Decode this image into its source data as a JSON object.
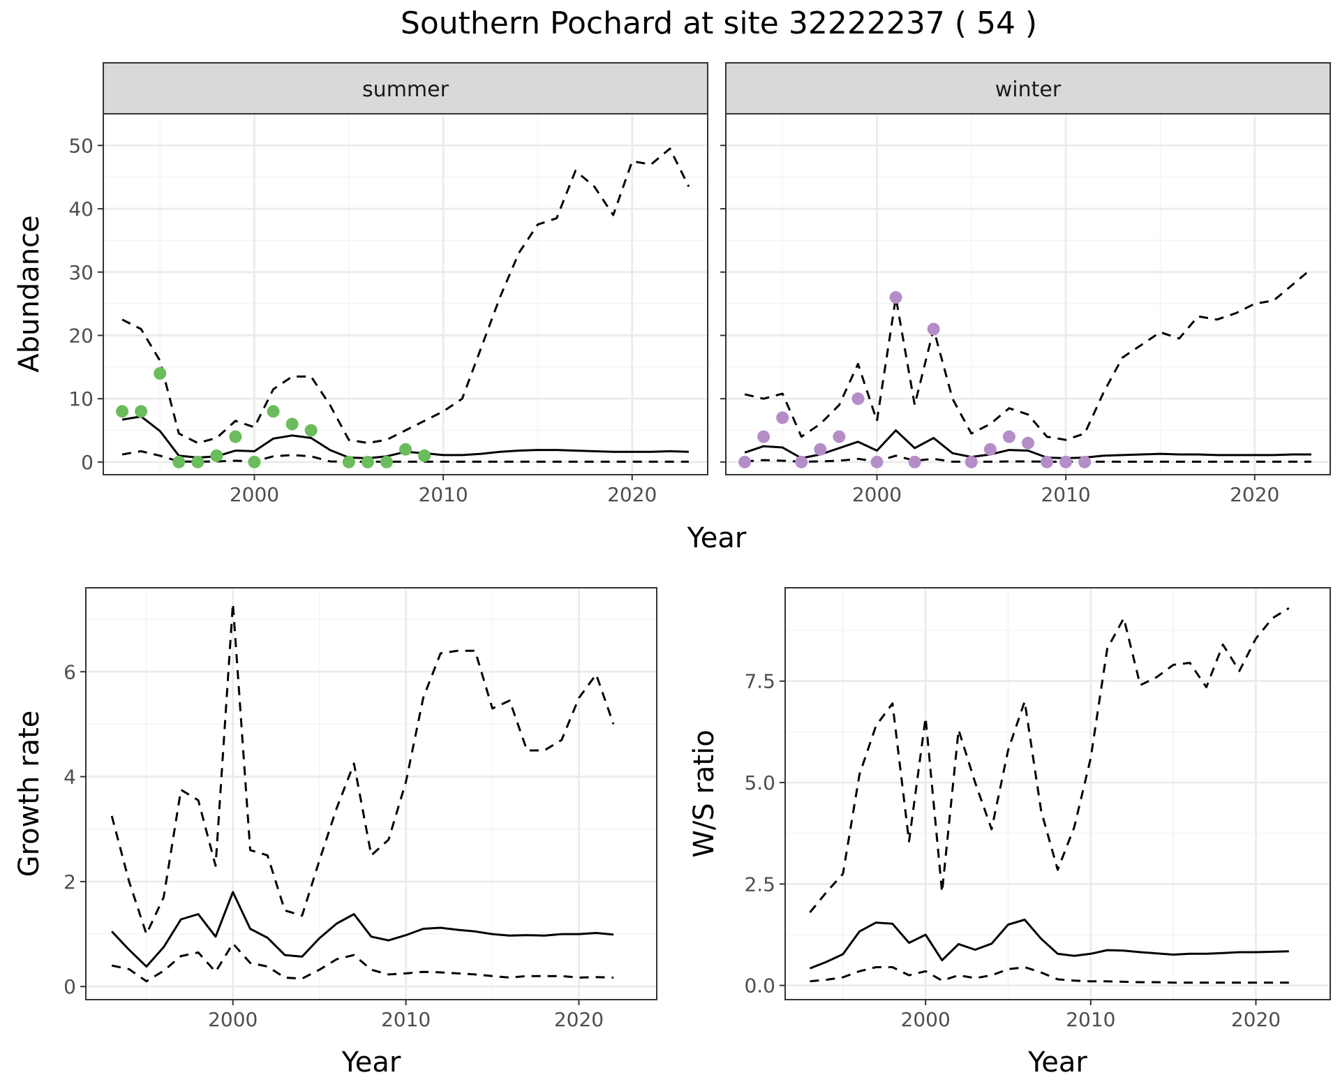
{
  "title": "Southern Pochard at site 32222237 ( 54 )",
  "colors": {
    "summer_points": "#6BBC5C",
    "winter_points": "#B48DC8",
    "line": "#000000",
    "grid_major": "#EBEBEB",
    "grid_minor": "#F3F3F3",
    "strip_fill": "#D9D9D9",
    "panel_border": "#333333"
  },
  "chart_data": [
    {
      "id": "abundance",
      "type": "line",
      "xlabel": "Year",
      "ylabel": "Abundance",
      "facets": [
        {
          "label": "summer",
          "point_color": "summer_points",
          "xlim": [
            1992,
            2024
          ],
          "ylim": [
            -2,
            55
          ],
          "x_ticks": [
            2000,
            2010,
            2020
          ],
          "y_ticks": [
            0,
            10,
            20,
            30,
            40,
            50
          ],
          "points": {
            "x": [
              1993,
              1994,
              1995,
              1996,
              1997,
              1998,
              1999,
              2000,
              2001,
              2002,
              2003,
              2005,
              2006,
              2007,
              2008,
              2009
            ],
            "y": [
              8,
              8,
              14,
              0,
              0,
              1,
              4,
              0,
              8,
              6,
              5,
              0,
              0,
              0,
              2,
              1
            ]
          },
          "series": [
            {
              "style": "solid",
              "x": [
                1993,
                1994,
                1995,
                1996,
                1997,
                1998,
                1999,
                2000,
                2001,
                2002,
                2003,
                2004,
                2005,
                2006,
                2007,
                2008,
                2009,
                2010,
                2011,
                2012,
                2013,
                2014,
                2015,
                2016,
                2017,
                2018,
                2019,
                2020,
                2021,
                2022,
                2023
              ],
              "y": [
                6.7,
                7.2,
                4.9,
                1.0,
                0.7,
                0.9,
                1.8,
                1.7,
                3.7,
                4.2,
                3.8,
                1.9,
                0.7,
                0.6,
                0.9,
                1.6,
                1.4,
                1.1,
                1.1,
                1.3,
                1.6,
                1.8,
                1.9,
                1.9,
                1.8,
                1.7,
                1.6,
                1.6,
                1.6,
                1.7,
                1.6
              ]
            },
            {
              "style": "dashed",
              "x": [
                1993,
                1994,
                1995,
                1996,
                1997,
                1998,
                1999,
                2000,
                2001,
                2002,
                2003,
                2004,
                2005,
                2006,
                2007,
                2008,
                2009,
                2010,
                2011,
                2012,
                2013,
                2014,
                2015,
                2016,
                2017,
                2018,
                2019,
                2020,
                2021,
                2022,
                2023
              ],
              "y": [
                22.5,
                21.0,
                16.0,
                4.5,
                3.0,
                3.8,
                6.5,
                5.5,
                11.5,
                13.5,
                13.5,
                9.0,
                3.5,
                3.0,
                3.5,
                5.0,
                6.5,
                8.0,
                10.0,
                18.0,
                26.0,
                33.0,
                37.5,
                38.5,
                46.0,
                43.5,
                39.0,
                47.5,
                47.0,
                49.5,
                43.5
              ]
            },
            {
              "style": "dashed",
              "x": [
                1993,
                1994,
                1995,
                1996,
                1997,
                1998,
                1999,
                2000,
                2001,
                2002,
                2003,
                2004,
                2005,
                2006,
                2007,
                2008,
                2009,
                2010,
                2011,
                2012,
                2013,
                2014,
                2015,
                2016,
                2017,
                2018,
                2019,
                2020,
                2021,
                2022,
                2023
              ],
              "y": [
                1.2,
                1.7,
                1.0,
                0.1,
                0.05,
                0.1,
                0.2,
                0.1,
                0.9,
                1.1,
                0.9,
                0.1,
                0.05,
                0.05,
                0.05,
                0.05,
                0.05,
                0.05,
                0.05,
                0.05,
                0.05,
                0.05,
                0.05,
                0.05,
                0.05,
                0.05,
                0.05,
                0.05,
                0.05,
                0.05,
                0.05
              ]
            }
          ]
        },
        {
          "label": "winter",
          "point_color": "winter_points",
          "xlim": [
            1992,
            2024
          ],
          "ylim": [
            -2,
            55
          ],
          "x_ticks": [
            2000,
            2010,
            2020
          ],
          "y_ticks": [
            0,
            10,
            20,
            30,
            40,
            50
          ],
          "points": {
            "x": [
              1993,
              1994,
              1995,
              1996,
              1997,
              1998,
              1999,
              2000,
              2001,
              2002,
              2003,
              2005,
              2006,
              2007,
              2008,
              2009,
              2010,
              2011
            ],
            "y": [
              0,
              4,
              7,
              0,
              2,
              4,
              10,
              0,
              26,
              0,
              21,
              0,
              2,
              4,
              3,
              0,
              0,
              0
            ]
          },
          "series": [
            {
              "style": "solid",
              "x": [
                1993,
                1994,
                1995,
                1996,
                1997,
                1998,
                1999,
                2000,
                2001,
                2002,
                2003,
                2004,
                2005,
                2006,
                2007,
                2008,
                2009,
                2010,
                2011,
                2012,
                2013,
                2014,
                2015,
                2016,
                2017,
                2018,
                2019,
                2020,
                2021,
                2022,
                2023
              ],
              "y": [
                1.5,
                2.5,
                2.3,
                0.6,
                1.2,
                2.2,
                3.2,
                1.8,
                5.0,
                2.2,
                3.8,
                1.4,
                0.8,
                1.2,
                1.9,
                1.8,
                0.7,
                0.6,
                0.7,
                1.0,
                1.1,
                1.2,
                1.3,
                1.2,
                1.2,
                1.1,
                1.1,
                1.1,
                1.1,
                1.2,
                1.2
              ]
            },
            {
              "style": "dashed",
              "x": [
                1993,
                1994,
                1995,
                1996,
                1997,
                1998,
                1999,
                2000,
                2001,
                2002,
                2003,
                2004,
                2005,
                2006,
                2007,
                2008,
                2009,
                2010,
                2011,
                2012,
                2013,
                2014,
                2015,
                2016,
                2017,
                2018,
                2019,
                2020,
                2021,
                2022,
                2023
              ],
              "y": [
                10.7,
                10.0,
                10.8,
                4.0,
                6.0,
                9.0,
                15.5,
                6.5,
                26.0,
                9.0,
                21.0,
                10.0,
                4.5,
                6.0,
                8.5,
                7.5,
                4.0,
                3.5,
                4.5,
                11.0,
                16.5,
                18.5,
                20.5,
                19.5,
                23.0,
                22.5,
                23.5,
                25.0,
                25.5,
                28.0,
                30.5
              ]
            },
            {
              "style": "dashed",
              "x": [
                1993,
                1994,
                1995,
                1996,
                1997,
                1998,
                1999,
                2000,
                2001,
                2002,
                2003,
                2004,
                2005,
                2006,
                2007,
                2008,
                2009,
                2010,
                2011,
                2012,
                2013,
                2014,
                2015,
                2016,
                2017,
                2018,
                2019,
                2020,
                2021,
                2022,
                2023
              ],
              "y": [
                0.1,
                0.3,
                0.2,
                0.05,
                0.1,
                0.2,
                0.5,
                0.1,
                1.0,
                0.2,
                0.5,
                0.05,
                0.05,
                0.05,
                0.1,
                0.1,
                0.05,
                0.05,
                0.05,
                0.05,
                0.05,
                0.05,
                0.05,
                0.05,
                0.05,
                0.05,
                0.05,
                0.05,
                0.05,
                0.05,
                0.05
              ]
            }
          ]
        }
      ]
    },
    {
      "id": "growth",
      "type": "line",
      "xlabel": "Year",
      "ylabel": "Growth rate",
      "xlim": [
        1991.5,
        2024.5
      ],
      "ylim": [
        -0.25,
        7.6
      ],
      "x_ticks": [
        2000,
        2010,
        2020
      ],
      "y_ticks": [
        0,
        2,
        4,
        6
      ],
      "series": [
        {
          "style": "solid",
          "x": [
            1993,
            1994,
            1995,
            1996,
            1997,
            1998,
            1999,
            2000,
            2001,
            2002,
            2003,
            2004,
            2005,
            2006,
            2007,
            2008,
            2009,
            2010,
            2011,
            2012,
            2013,
            2014,
            2015,
            2016,
            2017,
            2018,
            2019,
            2020,
            2021,
            2022
          ],
          "y": [
            1.05,
            0.7,
            0.38,
            0.75,
            1.28,
            1.38,
            0.95,
            1.8,
            1.1,
            0.93,
            0.6,
            0.57,
            0.92,
            1.2,
            1.38,
            0.95,
            0.88,
            0.98,
            1.1,
            1.12,
            1.08,
            1.05,
            1.0,
            0.97,
            0.98,
            0.97,
            1.0,
            1.0,
            1.02,
            0.99
          ]
        },
        {
          "style": "dashed",
          "x": [
            1993,
            1994,
            1995,
            1996,
            1997,
            1998,
            1999,
            2000,
            2001,
            2002,
            2003,
            2004,
            2005,
            2006,
            2007,
            2008,
            2009,
            2010,
            2011,
            2012,
            2013,
            2014,
            2015,
            2016,
            2017,
            2018,
            2019,
            2020,
            2021,
            2022
          ],
          "y": [
            3.25,
            2.0,
            1.0,
            1.7,
            3.75,
            3.55,
            2.3,
            7.3,
            2.6,
            2.5,
            1.45,
            1.35,
            2.4,
            3.4,
            4.25,
            2.5,
            2.8,
            3.9,
            5.5,
            6.35,
            6.4,
            6.4,
            5.3,
            5.45,
            4.5,
            4.5,
            4.7,
            5.5,
            5.95,
            5.0
          ]
        },
        {
          "style": "dashed",
          "x": [
            1993,
            1994,
            1995,
            1996,
            1997,
            1998,
            1999,
            2000,
            2001,
            2002,
            2003,
            2004,
            2005,
            2006,
            2007,
            2008,
            2009,
            2010,
            2011,
            2012,
            2013,
            2014,
            2015,
            2016,
            2017,
            2018,
            2019,
            2020,
            2021,
            2022
          ],
          "y": [
            0.4,
            0.33,
            0.1,
            0.3,
            0.58,
            0.65,
            0.28,
            0.82,
            0.45,
            0.38,
            0.17,
            0.15,
            0.32,
            0.52,
            0.6,
            0.32,
            0.23,
            0.25,
            0.28,
            0.27,
            0.25,
            0.23,
            0.2,
            0.17,
            0.2,
            0.2,
            0.2,
            0.17,
            0.18,
            0.17
          ]
        }
      ]
    },
    {
      "id": "ws_ratio",
      "type": "line",
      "xlabel": "Year",
      "ylabel": "W/S ratio",
      "xlim": [
        1991.5,
        2024.5
      ],
      "ylim": [
        -0.35,
        9.8
      ],
      "x_ticks": [
        2000,
        2010,
        2020
      ],
      "y_ticks": [
        0,
        2.5,
        5,
        7.5
      ],
      "y_tick_labels": [
        "0.0",
        "2.5",
        "5.0",
        "7.5"
      ],
      "series": [
        {
          "style": "solid",
          "x": [
            1993,
            1994,
            1995,
            1996,
            1997,
            1998,
            1999,
            2000,
            2001,
            2002,
            2003,
            2004,
            2005,
            2006,
            2007,
            2008,
            2009,
            2010,
            2011,
            2012,
            2013,
            2014,
            2015,
            2016,
            2017,
            2018,
            2019,
            2020,
            2021,
            2022
          ],
          "y": [
            0.42,
            0.58,
            0.77,
            1.33,
            1.55,
            1.52,
            1.05,
            1.25,
            0.62,
            1.02,
            0.88,
            1.03,
            1.5,
            1.62,
            1.15,
            0.78,
            0.73,
            0.78,
            0.87,
            0.86,
            0.82,
            0.79,
            0.76,
            0.78,
            0.78,
            0.8,
            0.82,
            0.82,
            0.83,
            0.84
          ]
        },
        {
          "style": "dashed",
          "x": [
            1993,
            1994,
            1995,
            1996,
            1997,
            1998,
            1999,
            2000,
            2001,
            2002,
            2003,
            2004,
            2005,
            2006,
            2007,
            2008,
            2009,
            2010,
            2011,
            2012,
            2013,
            2014,
            2015,
            2016,
            2017,
            2018,
            2019,
            2020,
            2021,
            2022
          ],
          "y": [
            1.8,
            2.3,
            2.75,
            5.2,
            6.4,
            6.95,
            3.55,
            6.6,
            2.3,
            6.3,
            5.0,
            3.85,
            5.8,
            7.0,
            4.3,
            2.85,
            3.9,
            5.6,
            8.3,
            9.05,
            7.4,
            7.6,
            7.9,
            7.95,
            7.35,
            8.4,
            7.75,
            8.55,
            9.05,
            9.3
          ]
        },
        {
          "style": "dashed",
          "x": [
            1993,
            1994,
            1995,
            1996,
            1997,
            1998,
            1999,
            2000,
            2001,
            2002,
            2003,
            2004,
            2005,
            2006,
            2007,
            2008,
            2009,
            2010,
            2011,
            2012,
            2013,
            2014,
            2015,
            2016,
            2017,
            2018,
            2019,
            2020,
            2021,
            2022
          ],
          "y": [
            0.1,
            0.14,
            0.2,
            0.35,
            0.45,
            0.45,
            0.25,
            0.35,
            0.12,
            0.25,
            0.18,
            0.25,
            0.4,
            0.45,
            0.32,
            0.15,
            0.12,
            0.1,
            0.1,
            0.09,
            0.08,
            0.08,
            0.07,
            0.07,
            0.07,
            0.07,
            0.07,
            0.07,
            0.07,
            0.07
          ]
        }
      ]
    }
  ]
}
